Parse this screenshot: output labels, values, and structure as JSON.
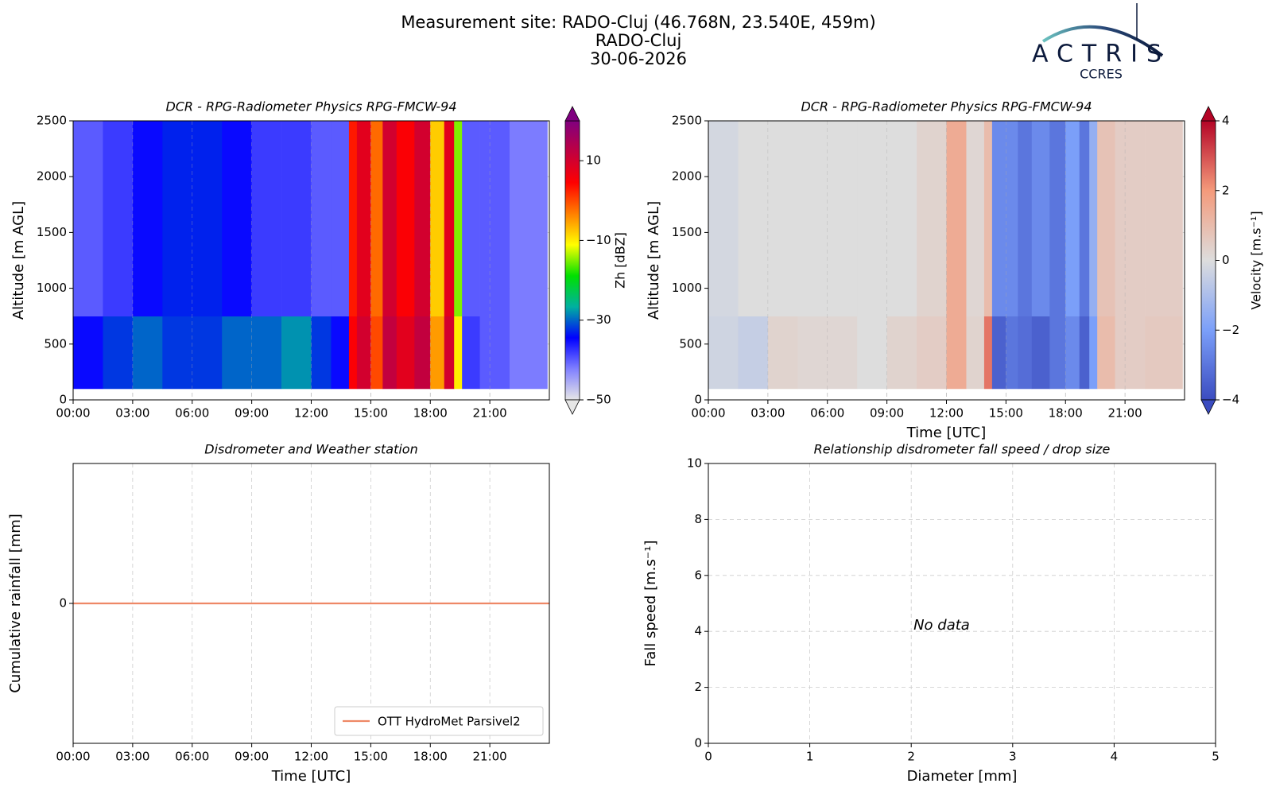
{
  "header": {
    "lines": [
      "Measurement site: RADO-Cluj (46.768N, 23.540E, 459m)",
      "RADO-Cluj",
      "30-06-2026"
    ]
  },
  "logo": {
    "name": "ACTRIS",
    "sub": "CCRES"
  },
  "chart_data": [
    {
      "type": "heatmap",
      "title": "DCR - RPG-Radiometer Physics RPG-FMCW-94",
      "ylabel": "Altitude [m AGL]",
      "x_bins": [
        0,
        1.5,
        3,
        4.5,
        6,
        7.5,
        9,
        10.5,
        12,
        13,
        13.9,
        14.3,
        15,
        15.6,
        16.3,
        17.2,
        18,
        18.7,
        19.2,
        19.6,
        20.5,
        22,
        23.9
      ],
      "y_bins": [
        100,
        750,
        2500
      ],
      "values": [
        [
          -35,
          -32,
          -30,
          -32,
          -32,
          -30,
          -30,
          -28,
          -32,
          -35,
          5,
          10,
          0,
          12,
          8,
          12,
          -5,
          10,
          -10,
          -38,
          -40,
          -42
        ],
        [
          -40,
          -38,
          -35,
          -33,
          -33,
          -35,
          -38,
          -38,
          -40,
          -40,
          3,
          8,
          -2,
          10,
          5,
          10,
          -8,
          8,
          -15,
          -40,
          -40,
          -42
        ]
      ],
      "xlim": [
        0,
        24
      ],
      "ylim": [
        0,
        2500
      ],
      "xticks": [
        {
          "value": 0,
          "label": "00:00"
        },
        {
          "value": 3,
          "label": "03:00"
        },
        {
          "value": 6,
          "label": "06:00"
        },
        {
          "value": 9,
          "label": "09:00"
        },
        {
          "value": 12,
          "label": "12:00"
        },
        {
          "value": 15,
          "label": "15:00"
        },
        {
          "value": 18,
          "label": "18:00"
        },
        {
          "value": 21,
          "label": "21:00"
        }
      ],
      "yticks": [
        0,
        500,
        1000,
        1500,
        2000,
        2500
      ],
      "grid": true,
      "colorbar": {
        "label": "Zh [dBZ]",
        "clim": [
          -50,
          20
        ],
        "ticks": [
          {
            "value": -50,
            "label": "−50"
          },
          {
            "value": -30,
            "label": "−30"
          },
          {
            "value": -10,
            "label": "−10"
          },
          10
        ],
        "colormap": [
          "#e6e6e6",
          "#8080ff",
          "#0000ff",
          "#00b0a0",
          "#00e000",
          "#ffff00",
          "#ff8000",
          "#ff0000",
          "#c00040",
          "#800080"
        ]
      }
    },
    {
      "type": "heatmap",
      "title": "DCR - RPG-Radiometer Physics RPG-FMCW-94",
      "ylabel": "Altitude [m AGL]",
      "xlabel": "Time [UTC]",
      "x_bins": [
        0,
        1.5,
        3,
        4.5,
        6,
        7.5,
        9,
        10.5,
        12,
        13,
        13.9,
        14.3,
        15,
        15.6,
        16.3,
        17.2,
        18,
        18.7,
        19.2,
        19.6,
        20.5,
        22,
        23.9
      ],
      "y_bins": [
        100,
        750,
        2500
      ],
      "values": [
        [
          -0.3,
          -0.5,
          0.3,
          0.2,
          0.2,
          0,
          0.3,
          0.5,
          1.5,
          0.3,
          2.5,
          -3.5,
          -3,
          -3.2,
          -3.5,
          -3,
          -2.5,
          -3.5,
          -2,
          1,
          0.5,
          0.6
        ],
        [
          -0.2,
          0,
          0,
          0,
          0,
          0,
          0,
          0.3,
          1.5,
          0.2,
          1,
          -2.5,
          -2.5,
          -3,
          -2.5,
          -3,
          -2,
          -3,
          -1.5,
          0.8,
          0.5,
          0.5
        ]
      ],
      "xlim": [
        0,
        24
      ],
      "ylim": [
        0,
        2500
      ],
      "xticks": [
        {
          "value": 0,
          "label": "00:00"
        },
        {
          "value": 3,
          "label": "03:00"
        },
        {
          "value": 6,
          "label": "06:00"
        },
        {
          "value": 9,
          "label": "09:00"
        },
        {
          "value": 12,
          "label": "12:00"
        },
        {
          "value": 15,
          "label": "15:00"
        },
        {
          "value": 18,
          "label": "18:00"
        },
        {
          "value": 21,
          "label": "21:00"
        }
      ],
      "yticks": [
        0,
        500,
        1000,
        1500,
        2000,
        2500
      ],
      "grid": true,
      "colorbar": {
        "label": "Velocity [m.s⁻¹]",
        "clim": [
          -4,
          4
        ],
        "ticks": [
          {
            "value": -4,
            "label": "−4"
          },
          {
            "value": -2,
            "label": "−2"
          },
          0,
          2,
          4
        ],
        "colormap": [
          "#3b4cc0",
          "#7b9ff9",
          "#dddddd",
          "#f49a7b",
          "#b40426"
        ]
      }
    },
    {
      "type": "line",
      "title": "Disdrometer and Weather station",
      "ylabel": "Cumulative rainfall [mm]",
      "xlabel": "Time [UTC]",
      "x": [
        0,
        24
      ],
      "series": [
        {
          "name": "OTT HydroMet Parsivel2",
          "color": "#ee8866",
          "values": [
            0,
            0
          ]
        }
      ],
      "xlim": [
        0,
        24
      ],
      "ylim": [
        -1,
        1
      ],
      "xticks": [
        {
          "value": 0,
          "label": "00:00"
        },
        {
          "value": 3,
          "label": "03:00"
        },
        {
          "value": 6,
          "label": "06:00"
        },
        {
          "value": 9,
          "label": "09:00"
        },
        {
          "value": 12,
          "label": "12:00"
        },
        {
          "value": 15,
          "label": "15:00"
        },
        {
          "value": 18,
          "label": "18:00"
        },
        {
          "value": 21,
          "label": "21:00"
        }
      ],
      "yticks": [
        0
      ],
      "grid": true,
      "legend": "lower right"
    },
    {
      "type": "scatter",
      "title": "Relationship disdrometer fall speed / drop size",
      "ylabel": "Fall speed [m.s⁻¹]",
      "xlabel": "Diameter [mm]",
      "annotation": "No data",
      "xlim": [
        0,
        5
      ],
      "ylim": [
        0,
        10
      ],
      "xticks": [
        0,
        1,
        2,
        3,
        4,
        5
      ],
      "yticks": [
        0,
        2,
        4,
        6,
        8,
        10
      ],
      "grid": true
    }
  ]
}
